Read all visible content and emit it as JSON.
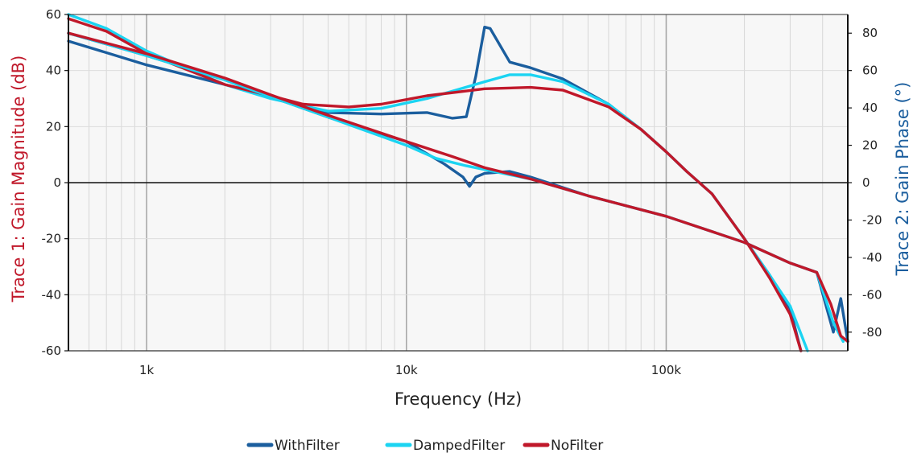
{
  "chart_data": {
    "type": "line",
    "xscale": "log",
    "grid": true,
    "legend_position": "bottom-center",
    "xlabel": "Frequency (Hz)",
    "xlim": [
      500,
      500000
    ],
    "xticks": [
      {
        "value": 1000,
        "label": "1k"
      },
      {
        "value": 10000,
        "label": "10k"
      },
      {
        "value": 100000,
        "label": "100k"
      }
    ],
    "y1": {
      "label": "Trace 1: Gain Magnitude (dB)",
      "color": "#c0182a",
      "lim": [
        -60,
        60
      ],
      "ticks": [
        60,
        40,
        20,
        0,
        -20,
        -40,
        -60
      ],
      "tick_labels": [
        "60",
        "40",
        "20",
        "0",
        "-20",
        "-40",
        "-60"
      ]
    },
    "y2": {
      "label": "Trace 2: Gain Phase (°)",
      "color": "#1b5e9e",
      "lim": [
        -90,
        90
      ],
      "ticks": [
        80,
        60,
        40,
        20,
        0,
        -20,
        -40,
        -60,
        -80
      ],
      "tick_labels": [
        "80",
        "60",
        "40",
        "20",
        "0",
        "-20",
        "-40",
        "-60",
        "-80"
      ]
    },
    "series": [
      {
        "name": "WithFilter",
        "color": "#1b5e9e",
        "trace": "magnitude",
        "axis": "y1",
        "points": [
          [
            500,
            50.5
          ],
          [
            1000,
            42
          ],
          [
            2000,
            35
          ],
          [
            3000,
            31
          ],
          [
            5000,
            25
          ],
          [
            8000,
            24.5
          ],
          [
            12000,
            25
          ],
          [
            15000,
            23
          ],
          [
            17000,
            23.5
          ],
          [
            18500,
            38
          ],
          [
            20000,
            55.5
          ],
          [
            21000,
            55
          ],
          [
            25000,
            43
          ],
          [
            30000,
            41
          ],
          [
            40000,
            37
          ],
          [
            60000,
            28
          ],
          [
            80000,
            19
          ],
          [
            100000,
            11
          ],
          [
            120000,
            4
          ],
          [
            150000,
            -4
          ],
          [
            200000,
            -20
          ],
          [
            250000,
            -33
          ],
          [
            300000,
            -45
          ],
          [
            330000,
            -60
          ]
        ]
      },
      {
        "name": "DampedFilter",
        "color": "#1bd4f2",
        "trace": "magnitude",
        "axis": "y1",
        "points": [
          [
            500,
            60
          ],
          [
            700,
            55
          ],
          [
            1000,
            47
          ],
          [
            2000,
            35
          ],
          [
            3000,
            30
          ],
          [
            5000,
            25.5
          ],
          [
            8000,
            26.5
          ],
          [
            12000,
            30
          ],
          [
            20000,
            36
          ],
          [
            25000,
            38.5
          ],
          [
            30000,
            38.5
          ],
          [
            40000,
            36
          ],
          [
            60000,
            28
          ],
          [
            80000,
            19
          ],
          [
            100000,
            11
          ],
          [
            120000,
            4
          ],
          [
            150000,
            -4
          ],
          [
            200000,
            -20
          ],
          [
            250000,
            -33
          ],
          [
            300000,
            -44
          ],
          [
            350000,
            -60
          ]
        ]
      },
      {
        "name": "NoFilter",
        "color": "#c0182a",
        "trace": "magnitude",
        "axis": "y1",
        "points": [
          [
            500,
            58.5
          ],
          [
            700,
            54
          ],
          [
            1000,
            46
          ],
          [
            2000,
            35
          ],
          [
            3000,
            31
          ],
          [
            4000,
            28
          ],
          [
            6000,
            27
          ],
          [
            8000,
            28
          ],
          [
            12000,
            31
          ],
          [
            20000,
            33.5
          ],
          [
            30000,
            34
          ],
          [
            40000,
            33
          ],
          [
            60000,
            27
          ],
          [
            80000,
            19
          ],
          [
            100000,
            11
          ],
          [
            120000,
            4
          ],
          [
            150000,
            -4
          ],
          [
            200000,
            -20
          ],
          [
            250000,
            -34
          ],
          [
            300000,
            -47
          ],
          [
            330000,
            -60
          ]
        ]
      },
      {
        "name": "WithFilter",
        "color": "#1b5e9e",
        "trace": "phase",
        "axis": "y2",
        "points": [
          [
            500,
            80
          ],
          [
            1000,
            68
          ],
          [
            2000,
            55
          ],
          [
            3000,
            46
          ],
          [
            5000,
            35
          ],
          [
            10000,
            22
          ],
          [
            14000,
            10
          ],
          [
            16500,
            3
          ],
          [
            17500,
            -2
          ],
          [
            18500,
            3
          ],
          [
            20000,
            5
          ],
          [
            25000,
            6
          ],
          [
            30000,
            3
          ],
          [
            50000,
            -7
          ],
          [
            100000,
            -18
          ],
          [
            200000,
            -32
          ],
          [
            300000,
            -43
          ],
          [
            380000,
            -48
          ],
          [
            440000,
            -80
          ],
          [
            470000,
            -62
          ],
          [
            500000,
            -85
          ]
        ]
      },
      {
        "name": "DampedFilter",
        "color": "#1bd4f2",
        "trace": "phase",
        "axis": "y2",
        "points": [
          [
            500,
            80
          ],
          [
            1000,
            68
          ],
          [
            2000,
            55
          ],
          [
            3000,
            46
          ],
          [
            5000,
            35
          ],
          [
            10000,
            20
          ],
          [
            13000,
            13
          ],
          [
            17000,
            9
          ],
          [
            20000,
            7
          ],
          [
            30000,
            2
          ],
          [
            50000,
            -7
          ],
          [
            100000,
            -18
          ],
          [
            200000,
            -32
          ],
          [
            300000,
            -43
          ],
          [
            380000,
            -48
          ],
          [
            440000,
            -75
          ],
          [
            480000,
            -85
          ]
        ]
      },
      {
        "name": "NoFilter",
        "color": "#c0182a",
        "trace": "phase",
        "axis": "y2",
        "points": [
          [
            500,
            80
          ],
          [
            1000,
            69
          ],
          [
            2000,
            56
          ],
          [
            3000,
            47
          ],
          [
            5000,
            36
          ],
          [
            10000,
            22
          ],
          [
            15000,
            14
          ],
          [
            20000,
            8
          ],
          [
            30000,
            2
          ],
          [
            50000,
            -7
          ],
          [
            100000,
            -18
          ],
          [
            200000,
            -32
          ],
          [
            300000,
            -43
          ],
          [
            380000,
            -48
          ],
          [
            430000,
            -65
          ],
          [
            470000,
            -82
          ],
          [
            500000,
            -85
          ]
        ]
      }
    ]
  },
  "legend": {
    "items": [
      {
        "label": "WithFilter",
        "color": "#1b5e9e"
      },
      {
        "label": "DampedFilter",
        "color": "#1bd4f2"
      },
      {
        "label": "NoFilter",
        "color": "#c0182a"
      }
    ]
  }
}
